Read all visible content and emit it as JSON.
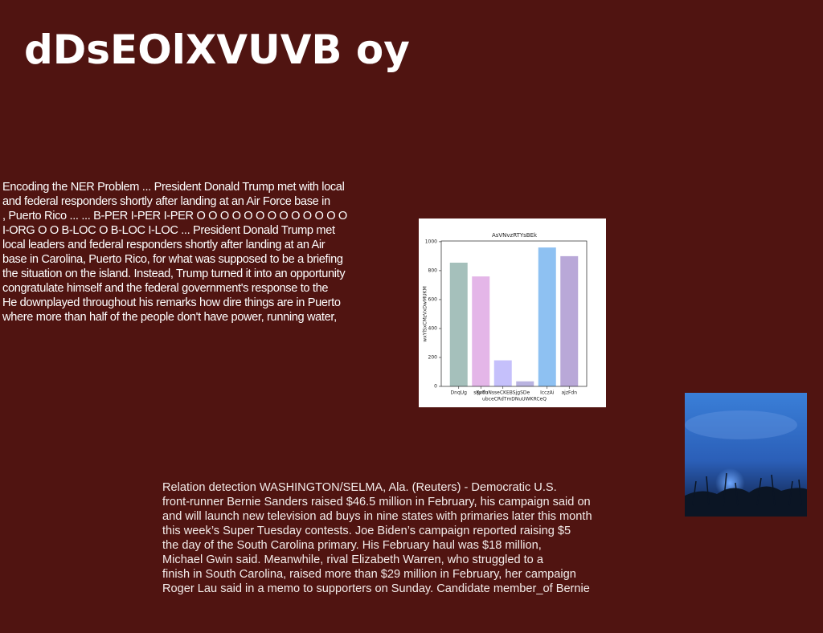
{
  "header": {
    "title": "dDsEOlXVUVB oy"
  },
  "paragraph1": {
    "lines": [
      "Encoding the NER Problem ... President Donald Trump met with local",
      "and federal responders shortly after landing at an Air Force base in",
      ", Puerto Rico ... ... B-PER I-PER I-PER O O O O O O O O O O O O O",
      "I-ORG O O B-LOC O B-LOC I-LOC ... President Donald Trump met",
      "local leaders and federal responders shortly after landing at an Air",
      "base in Carolina, Puerto Rico, for what was supposed to be a briefing",
      "the situation on the island. Instead, Trump turned it into an opportunity",
      "congratulate himself and the federal government's response to the",
      "He downplayed throughout his remarks how dire things are in Puerto",
      "where more than half of the people don't have power, running water,"
    ]
  },
  "chart_data": {
    "type": "bar",
    "title": "AsVNvzRTYsBEk",
    "x_label": "ubceCRdTmDNuUWKRCeQ",
    "y_label": "wxYlSxCMzVxDwMUKM",
    "categories": [
      "DnqUg",
      "sIJpdu",
      "XvTnNsseCKEBSjgSDe",
      null,
      "IcczAi",
      "ajzFdn"
    ],
    "values": [
      855,
      760,
      180,
      35,
      960,
      900
    ],
    "colors": [
      "#a5c0bb",
      "#e4b6e8",
      "#c5c0fb",
      "#b9b3e0",
      "#8ec1f2",
      "#b9a8d8"
    ],
    "ylim": [
      0,
      1005
    ],
    "yticks": [
      0,
      200,
      400,
      600,
      800,
      1000
    ]
  },
  "paragraph2": {
    "lines": [
      "Relation detection WASHINGTON/SELMA, Ala. (Reuters) - Democratic U.S.",
      "front-runner Bernie Sanders raised $46.5 million in February, his campaign said on",
      "and will launch new television ad buys in nine states with primaries later this month",
      "this week’s Super Tuesday contests. Joe Biden’s campaign reported raising $5",
      "the day of the South Carolina primary. His February haul was $18 million,",
      "Michael Gwin said. Meanwhile, rival Elizabeth Warren, who struggled to a",
      "finish in South Carolina, raised more than $29 million in February, her campaign",
      "Roger Lau said in a memo to supporters on Sunday. Candidate member_of Bernie"
    ]
  }
}
